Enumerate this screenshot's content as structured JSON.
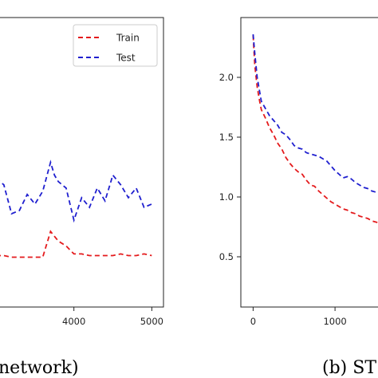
{
  "chart_data": [
    {
      "type": "line",
      "caption": "network)",
      "xlim": [
        3000,
        5150
      ],
      "x_ticks": [
        4000,
        5000
      ],
      "legend": {
        "placement": "top-right"
      },
      "series": [
        {
          "name": "Train",
          "color": "#e41a1c",
          "style": "dashed",
          "x": [
            3000,
            3100,
            3200,
            3300,
            3400,
            3500,
            3600,
            3700,
            3800,
            3900,
            4000,
            4100,
            4200,
            4300,
            4400,
            4500,
            4600,
            4700,
            4800,
            4900,
            5000
          ],
          "y": [
            0.02,
            0.02,
            0.01,
            0.01,
            0.01,
            0.01,
            0.01,
            0.17,
            0.11,
            0.08,
            0.03,
            0.03,
            0.02,
            0.02,
            0.02,
            0.02,
            0.03,
            0.02,
            0.02,
            0.03,
            0.02
          ]
        },
        {
          "name": "Test",
          "color": "#1f1fcf",
          "style": "dashed",
          "x": [
            3000,
            3100,
            3200,
            3300,
            3400,
            3500,
            3600,
            3700,
            3750,
            3800,
            3900,
            4000,
            4100,
            4200,
            4300,
            4400,
            4500,
            4600,
            4700,
            4800,
            4900,
            5000
          ],
          "y": [
            0.5,
            0.46,
            0.28,
            0.3,
            0.4,
            0.34,
            0.42,
            0.6,
            0.52,
            0.48,
            0.44,
            0.24,
            0.38,
            0.32,
            0.44,
            0.36,
            0.52,
            0.46,
            0.38,
            0.44,
            0.32,
            0.34
          ]
        }
      ],
      "ylim": [
        -0.3,
        1.5
      ]
    },
    {
      "type": "line",
      "caption": "(b) ST",
      "xlim": [
        -150,
        1700
      ],
      "ylim": [
        0.08,
        2.5
      ],
      "x_ticks": [
        0,
        1000
      ],
      "y_ticks": [
        0.5,
        1.0,
        1.5,
        2.0
      ],
      "y_tick_labels": [
        "0.5",
        "1.0",
        "1.5",
        "2.0"
      ],
      "series": [
        {
          "name": "Train",
          "color": "#e41a1c",
          "style": "dashed",
          "x": [
            0,
            20,
            50,
            80,
            100,
            150,
            200,
            250,
            300,
            350,
            400,
            450,
            500,
            550,
            600,
            650,
            700,
            750,
            800,
            850,
            900,
            950,
            1000,
            1050,
            1100,
            1150,
            1200,
            1250,
            1300,
            1350,
            1400,
            1450,
            1500,
            1550
          ],
          "y": [
            2.35,
            2.1,
            1.92,
            1.8,
            1.73,
            1.66,
            1.58,
            1.52,
            1.45,
            1.4,
            1.33,
            1.28,
            1.24,
            1.21,
            1.19,
            1.14,
            1.1,
            1.09,
            1.05,
            1.02,
            0.99,
            0.96,
            0.94,
            0.92,
            0.9,
            0.89,
            0.87,
            0.86,
            0.84,
            0.83,
            0.82,
            0.8,
            0.79,
            0.78
          ]
        },
        {
          "name": "Test",
          "color": "#1f1fcf",
          "style": "dashed",
          "x": [
            0,
            20,
            50,
            80,
            100,
            150,
            200,
            250,
            300,
            350,
            400,
            450,
            500,
            550,
            600,
            650,
            700,
            750,
            800,
            850,
            900,
            950,
            1000,
            1050,
            1100,
            1150,
            1200,
            1250,
            1300,
            1350,
            1400,
            1450,
            1500,
            1550
          ],
          "y": [
            2.36,
            2.2,
            2.0,
            1.88,
            1.8,
            1.74,
            1.68,
            1.64,
            1.6,
            1.54,
            1.52,
            1.48,
            1.43,
            1.41,
            1.4,
            1.37,
            1.36,
            1.35,
            1.34,
            1.32,
            1.3,
            1.26,
            1.22,
            1.19,
            1.16,
            1.17,
            1.15,
            1.12,
            1.1,
            1.08,
            1.07,
            1.05,
            1.04,
            1.03
          ]
        }
      ]
    }
  ]
}
